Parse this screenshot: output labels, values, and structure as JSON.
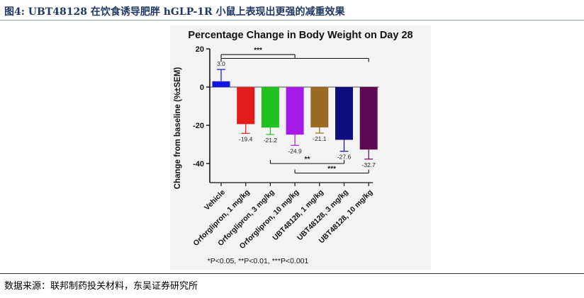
{
  "figure": {
    "label": "图4:",
    "title": "UBT48128 在饮食诱导肥胖 hGLP-1R 小鼠上表现出更强的减重效果",
    "source": "数据来源：联邦制药投关材料，东吴证券研究所"
  },
  "chart_data": {
    "type": "bar",
    "title": "Percentage Change in Body Weight on Day 28",
    "ylabel": "Change from baseline (%±SEM)",
    "ylim": [
      -50,
      20
    ],
    "yticks": [
      20,
      0,
      -20,
      -40
    ],
    "categories": [
      "Vehicle",
      "Orforglipron, 1 mg/kg",
      "Orforglipron, 3 mg/kg",
      "Orforglipron, 10 mg/kg",
      "UBT48128, 1 mg/kg",
      "UBT48128, 3 mg/kg",
      "UBT48128, 10 mg/kg"
    ],
    "values": [
      3.0,
      -19.4,
      -21.2,
      -24.9,
      -21.1,
      -27.6,
      -32.7
    ],
    "value_labels": [
      "3.0",
      "-19.4",
      "-21.2",
      "-24.9",
      "-21.1",
      "-27.6",
      "-32.7"
    ],
    "errors": [
      6.2,
      4.8,
      3.6,
      5.6,
      3.0,
      6.0,
      5.0
    ],
    "colors": [
      "#1313e6",
      "#e41b1b",
      "#1fc21f",
      "#a51ae6",
      "#9a6b25",
      "#0e0e80",
      "#5e0a52"
    ],
    "significance": [
      {
        "from": 0,
        "to": 3,
        "label": "***",
        "level": 17
      },
      {
        "from": 0,
        "to": 6,
        "label": "",
        "level": 15
      },
      {
        "from": 2,
        "to": 5,
        "label": "**",
        "level": -40
      },
      {
        "from": 3,
        "to": 6,
        "label": "***",
        "level": -45
      }
    ],
    "footnote": "*P<0.05, **P<0.01, ***P<0.001"
  }
}
